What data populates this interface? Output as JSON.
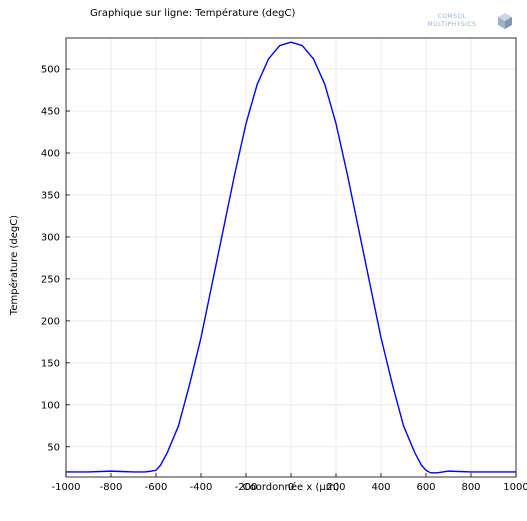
{
  "chart_data": {
    "type": "line",
    "title": "Graphique sur ligne: Température (degC)",
    "xlabel": "Coordonnée x (µm)",
    "ylabel": "Température (degC)",
    "xlim": [
      -1000,
      1000
    ],
    "ylim": [
      14,
      537
    ],
    "xticks": [
      -1000,
      -800,
      -600,
      -400,
      -200,
      0,
      200,
      400,
      600,
      800,
      1000
    ],
    "yticks": [
      50,
      100,
      150,
      200,
      250,
      300,
      350,
      400,
      450,
      500
    ],
    "grid": true,
    "series": [
      {
        "color": "#0000ff",
        "x": [
          -1000,
          -900,
          -800,
          -700,
          -650,
          -620,
          -600,
          -580,
          -550,
          -500,
          -450,
          -400,
          -350,
          -300,
          -250,
          -200,
          -150,
          -100,
          -50,
          0,
          50,
          100,
          150,
          200,
          250,
          300,
          350,
          400,
          450,
          500,
          550,
          580,
          600,
          620,
          650,
          700,
          800,
          900,
          1000
        ],
        "y": [
          20,
          20,
          21,
          20,
          20,
          21,
          22,
          28,
          43,
          75,
          125,
          180,
          245,
          310,
          375,
          435,
          482,
          512,
          528,
          532,
          528,
          512,
          482,
          435,
          375,
          310,
          245,
          180,
          125,
          75,
          43,
          28,
          22,
          19,
          19,
          21,
          20,
          20,
          20
        ]
      }
    ]
  },
  "logo": {
    "line1": "COMSOL",
    "line2": "MULTIPHYSICS",
    "icon": "comsol-cube-icon"
  }
}
